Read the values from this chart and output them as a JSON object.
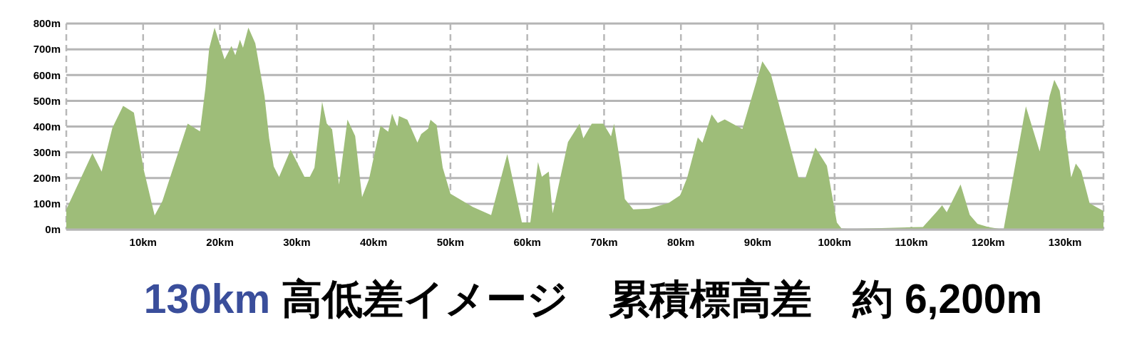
{
  "chart_data": {
    "type": "area",
    "title": "130km 高低差イメージ　累積標高差　約 6,200m",
    "color": "#9ebd79",
    "x": [
      0,
      3.4,
      4.6,
      6,
      7.4,
      8.8,
      10.1,
      11.5,
      12.5,
      15.8,
      17.4,
      18.1,
      18.6,
      19.3,
      20.6,
      21.5,
      22,
      22.6,
      23,
      23.7,
      24.6,
      25.8,
      26.4,
      27,
      27.7,
      29.2,
      31,
      31.7,
      32.3,
      33.3,
      33.9,
      34.6,
      35.5,
      36.6,
      37.6,
      38.5,
      39.4,
      40.9,
      41.9,
      42.4,
      43.1,
      43.3,
      44.4,
      45.7,
      46.2,
      47.1,
      47.4,
      48.2,
      49,
      50,
      52.9,
      55.3,
      57.4,
      59.3,
      60.4,
      61.4,
      61.9,
      62.8,
      63.3,
      65.3,
      66.8,
      67.3,
      68.4,
      69.9,
      70.9,
      71.3,
      72.2,
      72.7,
      73.8,
      75.9,
      78.4,
      79.9,
      80.8,
      82.2,
      82.8,
      84,
      84.8,
      85.7,
      88,
      90.6,
      91.7,
      95.3,
      96.2,
      97.5,
      99,
      100.3,
      100.9,
      102,
      110,
      111.5,
      113.3,
      114,
      114.6,
      116.4,
      117.6,
      118.6,
      120,
      122,
      124.9,
      126.7,
      128,
      128.6,
      129.3,
      130.8,
      131.4,
      132.1,
      133.2,
      135
    ],
    "values": [
      78,
      296,
      225,
      395,
      480,
      454,
      230,
      55,
      110,
      411,
      381,
      547,
      703,
      784,
      661,
      713,
      677,
      737,
      706,
      784,
      723,
      519,
      355,
      245,
      204,
      310,
      205,
      205,
      240,
      496,
      412,
      389,
      175,
      427,
      363,
      126,
      195,
      403,
      380,
      450,
      397,
      441,
      426,
      338,
      371,
      392,
      426,
      406,
      240,
      139,
      88,
      56,
      293,
      28,
      28,
      262,
      205,
      225,
      63,
      340,
      411,
      354,
      411,
      411,
      362,
      411,
      240,
      118,
      78,
      81,
      103,
      133,
      200,
      358,
      337,
      447,
      414,
      428,
      390,
      653,
      604,
      202,
      199,
      318,
      248,
      27,
      4,
      2,
      9,
      10,
      69,
      94,
      67,
      175,
      57,
      22,
      10,
      0,
      478,
      303,
      519,
      581,
      539,
      202,
      256,
      228,
      102,
      72
    ],
    "xlim": [
      0,
      135
    ],
    "ylim": [
      0,
      800
    ],
    "xticks": [
      {
        "value": 10,
        "label": "10km"
      },
      {
        "value": 20,
        "label": "20km"
      },
      {
        "value": 30,
        "label": "30km"
      },
      {
        "value": 40,
        "label": "40km"
      },
      {
        "value": 50,
        "label": "50km"
      },
      {
        "value": 60,
        "label": "60km"
      },
      {
        "value": 70,
        "label": "70km"
      },
      {
        "value": 80,
        "label": "80km"
      },
      {
        "value": 90,
        "label": "90km"
      },
      {
        "value": 100,
        "label": "100km"
      },
      {
        "value": 110,
        "label": "110km"
      },
      {
        "value": 120,
        "label": "120km"
      },
      {
        "value": 130,
        "label": "130km"
      }
    ],
    "yticks": [
      {
        "value": 0,
        "label": "0m"
      },
      {
        "value": 100,
        "label": "100m"
      },
      {
        "value": 200,
        "label": "200m"
      },
      {
        "value": 300,
        "label": "300m"
      },
      {
        "value": 400,
        "label": "400m"
      },
      {
        "value": 500,
        "label": "500m"
      },
      {
        "value": 600,
        "label": "600m"
      },
      {
        "value": 700,
        "label": "700m"
      },
      {
        "value": 800,
        "label": "800m"
      }
    ],
    "grid": true
  }
}
